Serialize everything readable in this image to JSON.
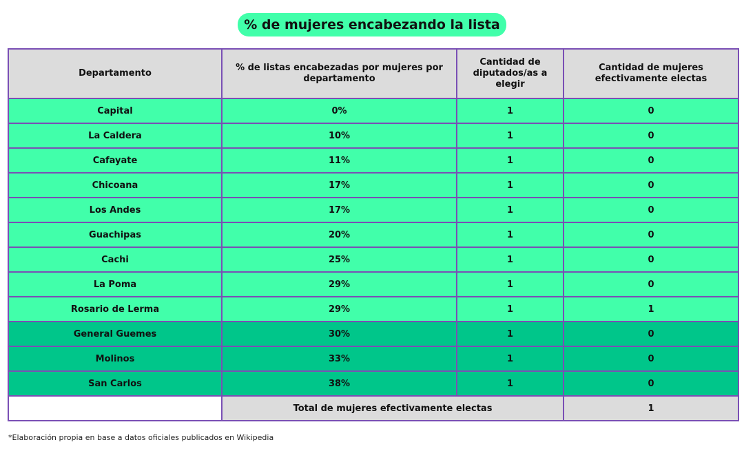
{
  "title": "% de mujeres encabezando la lista",
  "columns": [
    "Departamento",
    "% de listas encabezadas por mujeres por departamento",
    "Cantidad de diputados/as a elegir",
    "Cantidad de mujeres efectivamente electas"
  ],
  "rows": [
    {
      "departamento": "Capital",
      "porcentaje": "0%",
      "diputados": "1",
      "electas": "0"
    },
    {
      "departamento": "La Caldera",
      "porcentaje": "10%",
      "diputados": "1",
      "electas": "0"
    },
    {
      "departamento": "Cafayate",
      "porcentaje": "11%",
      "diputados": "1",
      "electas": "0"
    },
    {
      "departamento": "Chicoana",
      "porcentaje": "17%",
      "diputados": "1",
      "electas": "0"
    },
    {
      "departamento": "Los Andes",
      "porcentaje": "17%",
      "diputados": "1",
      "electas": "0"
    },
    {
      "departamento": "Guachipas",
      "porcentaje": "20%",
      "diputados": "1",
      "electas": "0"
    },
    {
      "departamento": "Cachi",
      "porcentaje": "25%",
      "diputados": "1",
      "electas": "0"
    },
    {
      "departamento": "La Poma",
      "porcentaje": "29%",
      "diputados": "1",
      "electas": "0"
    },
    {
      "departamento": "Rosario de Lerma",
      "porcentaje": "29%",
      "diputados": "1",
      "electas": "1"
    },
    {
      "departamento": "General Guemes",
      "porcentaje": "30%",
      "diputados": "1",
      "electas": "0"
    },
    {
      "departamento": "Molinos",
      "porcentaje": "33%",
      "diputados": "1",
      "electas": "0"
    },
    {
      "departamento": "San Carlos",
      "porcentaje": "38%",
      "diputados": "1",
      "electas": "0"
    }
  ],
  "total": {
    "label": "Total de mujeres efectivamente electas",
    "value": "1"
  },
  "footnote": "*Elaboración propia en base a datos oficiales publicados en Wikipedia",
  "colors": {
    "light_row": "#41ffaa",
    "dark_row": "#00c68a",
    "header_bg": "#dcdcdc",
    "border": "#7a4fb5"
  }
}
